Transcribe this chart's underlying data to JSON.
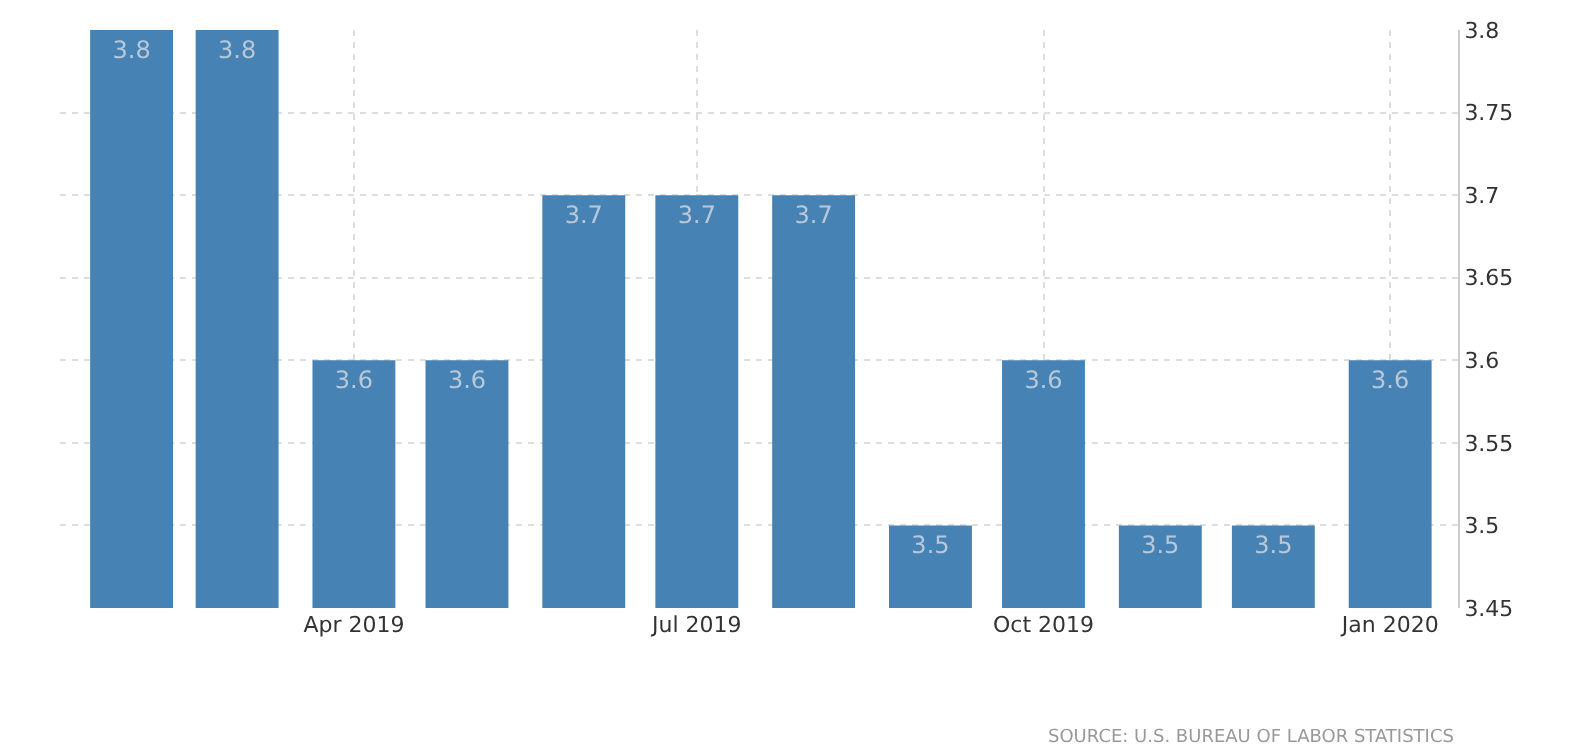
{
  "chart_data": {
    "type": "bar",
    "x": [
      "2019-02",
      "2019-03",
      "2019-04",
      "2019-05",
      "2019-06",
      "2019-07",
      "2019-08",
      "2019-09",
      "2019-10",
      "2019-11",
      "2019-12",
      "2020-01"
    ],
    "values": [
      3.8,
      3.8,
      3.6,
      3.6,
      3.7,
      3.7,
      3.7,
      3.5,
      3.6,
      3.5,
      3.5,
      3.6
    ],
    "color": "#4682b4",
    "xlim": [
      "2019-01-13",
      "2020-01-19"
    ],
    "xticks": [
      {
        "value": "2019-04",
        "label": "Apr 2019"
      },
      {
        "value": "2019-07",
        "label": "Jul 2019"
      },
      {
        "value": "2019-10",
        "label": "Oct 2019"
      },
      {
        "value": "2020-01",
        "label": "Jan 2020"
      }
    ],
    "ylim": [
      3.45,
      3.8
    ],
    "yticks": [
      3.45,
      3.5,
      3.55,
      3.6,
      3.65,
      3.7,
      3.75,
      3.8
    ],
    "grid": true,
    "data_labels": true,
    "annotations": [
      "SOURCE: U.S. BUREAU OF LABOR STATISTICS"
    ]
  }
}
